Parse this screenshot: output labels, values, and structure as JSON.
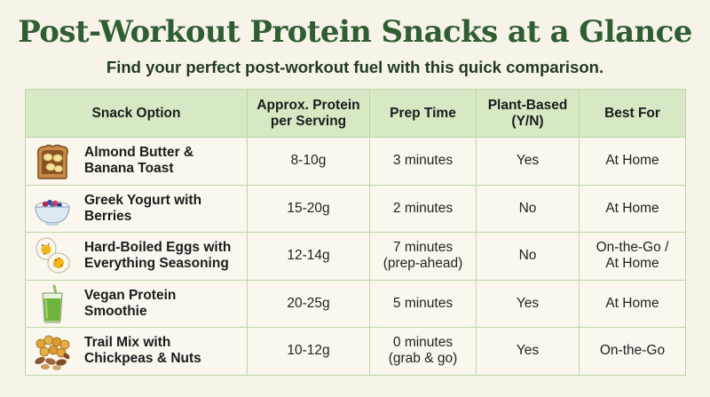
{
  "title": "Post-Workout Protein Snacks at a Glance",
  "subtitle": "Find your perfect post-workout fuel with this quick comparison.",
  "colors": {
    "title": "#2f5e33",
    "header_background": "#d6e8c4",
    "row_background": "#fbf7ef",
    "border": "#bcd6a8",
    "page_background": "#f8f3e8"
  },
  "table": {
    "headers": {
      "snack": "Snack Option",
      "protein": "Approx. Protein\nper Serving",
      "prep": "Prep Time",
      "plant": "Plant-Based\n(Y/N)",
      "best": "Best For"
    },
    "rows": [
      {
        "icon": "toast-icon",
        "name": "Almond Butter &\nBanana Toast",
        "protein": "8-10g",
        "prep": "3 minutes",
        "plant": "Yes",
        "best": "At Home"
      },
      {
        "icon": "yogurt-bowl-icon",
        "name": "Greek Yogurt with\nBerries",
        "protein": "15-20g",
        "prep": "2 minutes",
        "plant": "No",
        "best": "At Home"
      },
      {
        "icon": "boiled-eggs-icon",
        "name": "Hard-Boiled Eggs with\nEverything Seasoning",
        "protein": "12-14g",
        "prep": "7 minutes\n(prep-ahead)",
        "plant": "No",
        "best": "On-the-Go /\nAt Home"
      },
      {
        "icon": "smoothie-glass-icon",
        "name": "Vegan Protein\nSmoothie",
        "protein": "20-25g",
        "prep": "5 minutes",
        "plant": "Yes",
        "best": "At Home"
      },
      {
        "icon": "trail-mix-icon",
        "name": "Trail Mix with\nChickpeas & Nuts",
        "protein": "10-12g",
        "prep": "0 minutes\n(grab & go)",
        "plant": "Yes",
        "best": "On-the-Go"
      }
    ]
  }
}
